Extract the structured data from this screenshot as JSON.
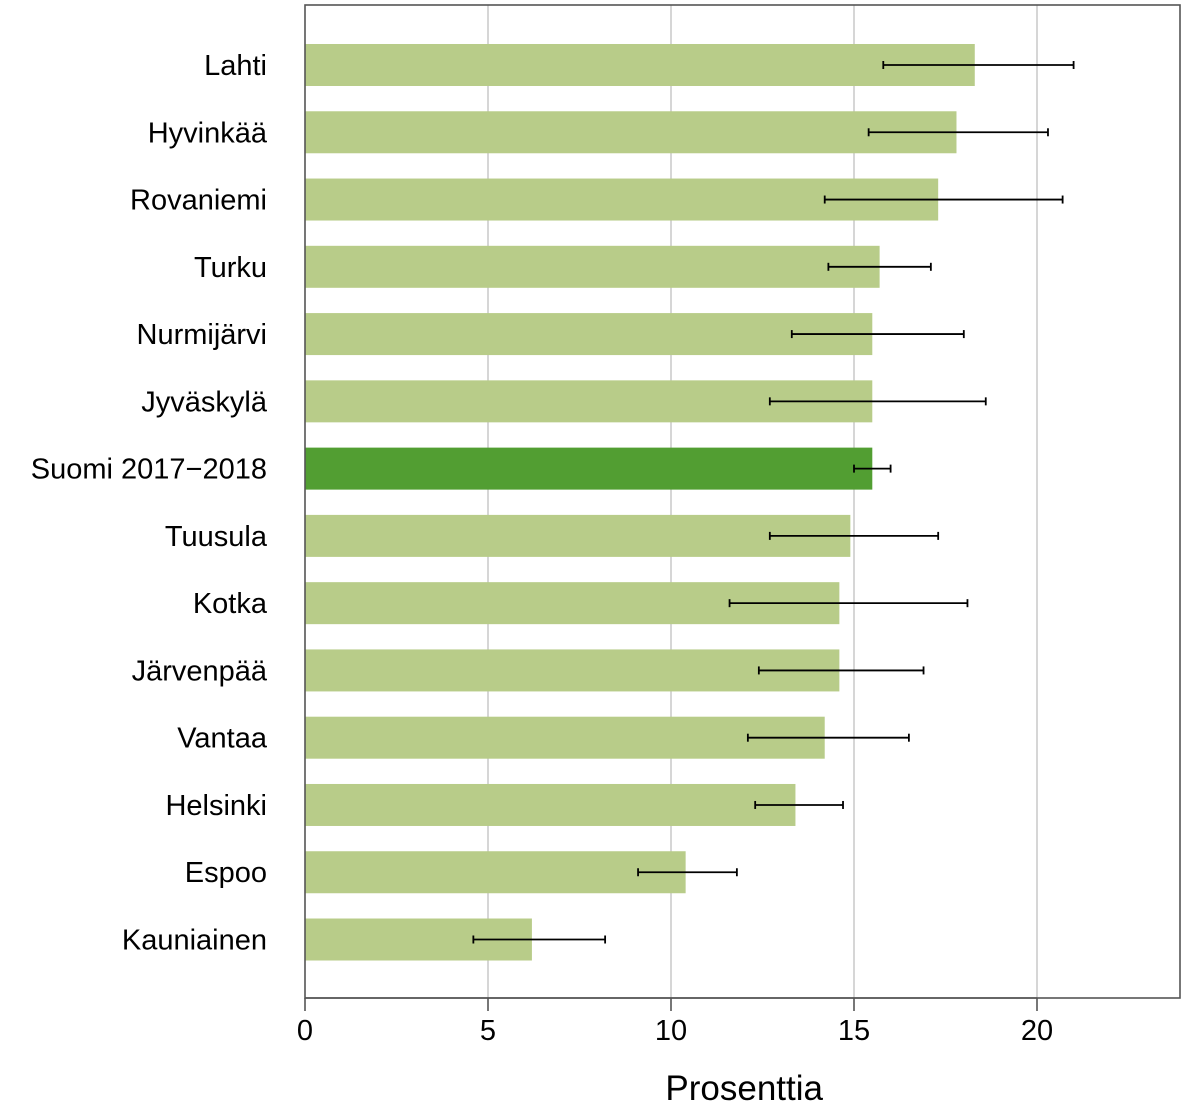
{
  "chart_data": {
    "type": "bar",
    "orientation": "horizontal",
    "title": "",
    "xlabel": "Prosenttia",
    "ylabel": "",
    "xlim": [
      0,
      24
    ],
    "xticks": [
      "0",
      "5",
      "10",
      "15",
      "20"
    ],
    "grid": "vertical",
    "categories": [
      "Lahti",
      "Hyvinkää",
      "Rovaniemi",
      "Turku",
      "Nurmijärvi",
      "Jyväskylä",
      "Suomi 2017−2018",
      "Tuusula",
      "Kotka",
      "Järvenpää",
      "Vantaa",
      "Helsinki",
      "Espoo",
      "Kauniainen"
    ],
    "values": [
      18.3,
      17.8,
      17.3,
      15.7,
      15.5,
      15.5,
      15.5,
      14.9,
      14.6,
      14.6,
      14.2,
      13.4,
      10.4,
      6.2
    ],
    "error_low": [
      15.8,
      15.4,
      14.2,
      14.3,
      13.3,
      12.7,
      15.0,
      12.7,
      11.6,
      12.4,
      12.1,
      12.3,
      9.1,
      4.6
    ],
    "error_high": [
      21.0,
      20.3,
      20.7,
      17.1,
      18.0,
      18.6,
      16.0,
      17.3,
      18.1,
      16.9,
      16.5,
      14.7,
      11.8,
      8.2
    ],
    "highlight": "Suomi 2017−2018",
    "colors": {
      "bar": "#b8cc89",
      "highlight_bar": "#529e32",
      "error_bar": "#000000",
      "grid": "#cccccc",
      "axis": "#555555"
    }
  }
}
